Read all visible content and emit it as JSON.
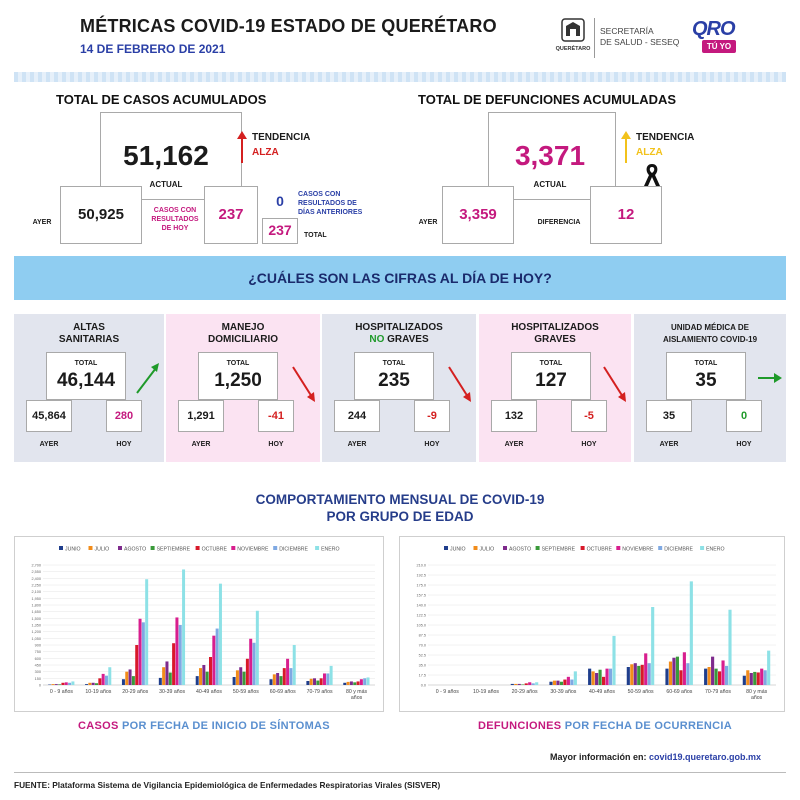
{
  "header": {
    "title": "MÉTRICAS COVID-19 ESTADO DE QUERÉTARO",
    "date": "14 DE FEBRERO DE 2021",
    "seal_label": "QUERÉTARO",
    "secretaria_line1": "SECRETARÍA",
    "secretaria_line2": "DE SALUD - SESEQ",
    "logo_text": "QRO",
    "logo_sub": "TÚ YO"
  },
  "casos": {
    "heading": "TOTAL DE CASOS ACUMULADOS",
    "actual": "51,162",
    "actual_label": "ACTUAL",
    "tendencia_label": "TENDENCIA",
    "tendencia_value": "ALZA",
    "ayer_label": "AYER",
    "ayer_value": "50,925",
    "hoy_label": "CASOS CON RESULTADOS DE HOY",
    "hoy_value": "237",
    "anteriores_value": "0",
    "anteriores_label": "CASOS CON RESULTADOS DE DÍAS ANTERIORES",
    "total_value": "237",
    "total_label": "TOTAL"
  },
  "defunciones": {
    "heading": "TOTAL DE DEFUNCIONES ACUMULADAS",
    "actual": "3,371",
    "actual_label": "ACTUAL",
    "tendencia_label": "TENDENCIA",
    "tendencia_value": "ALZA",
    "ayer_label": "AYER",
    "ayer_value": "3,359",
    "diferencia_label": "DIFERENCIA",
    "diferencia_value": "12"
  },
  "banner": "¿CUÁLES SON LAS CIFRAS AL DÍA DE HOY?",
  "cards": [
    {
      "title1": "ALTAS",
      "title2": "SANITARIAS",
      "total_label": "TOTAL",
      "total": "46,144",
      "ayer": "45,864",
      "hoy": "280",
      "ayer_label": "AYER",
      "hoy_label": "HOY",
      "trend": "up"
    },
    {
      "title1": "MANEJO",
      "title2": "DOMICILIARIO",
      "total_label": "TOTAL",
      "total": "1,250",
      "ayer": "1,291",
      "hoy": "-41",
      "ayer_label": "AYER",
      "hoy_label": "HOY",
      "trend": "down"
    },
    {
      "title1": "HOSPITALIZADOS",
      "title2a": "NO",
      "title2b": " GRAVES",
      "total_label": "TOTAL",
      "total": "235",
      "ayer": "244",
      "hoy": "-9",
      "ayer_label": "AYER",
      "hoy_label": "HOY",
      "trend": "down"
    },
    {
      "title1": "HOSPITALIZADOS",
      "title2": "GRAVES",
      "total_label": "TOTAL",
      "total": "127",
      "ayer": "132",
      "hoy": "-5",
      "ayer_label": "AYER",
      "hoy_label": "HOY",
      "trend": "down"
    },
    {
      "title1": "UNIDAD MÉDICA DE",
      "title2": "AISLAMIENTO COVID-19",
      "total_label": "TOTAL",
      "total": "35",
      "ayer": "35",
      "hoy": "0",
      "ayer_label": "AYER",
      "hoy_label": "HOY",
      "trend": "flat"
    }
  ],
  "colors": {
    "pink": "#c4197e",
    "blue": "#2a3fa6",
    "red_arrow": "#d42020",
    "green_arrow": "#1f9a2a",
    "yellow_arrow": "#f2c21b",
    "card_gray": "#e2e5ee",
    "card_pink": "#fbe3f2"
  },
  "comportamiento": {
    "line1": "COMPORTAMIENTO MENSUAL DE COVID-19",
    "line2": "POR GRUPO DE EDAD"
  },
  "chart_data": [
    {
      "type": "bar",
      "categories": [
        "0 - 9 años",
        "10-19 años",
        "20-29 años",
        "30-39 años",
        "40-49 años",
        "50-59 años",
        "60-69 años",
        "70-79 años",
        "80 y más años"
      ],
      "series": [
        {
          "name": "JUNIO",
          "color": "#1f3e8c",
          "values": [
            10,
            20,
            130,
            160,
            200,
            180,
            130,
            90,
            50
          ]
        },
        {
          "name": "JULIO",
          "color": "#f28c1a",
          "values": [
            20,
            50,
            300,
            400,
            380,
            330,
            240,
            140,
            70
          ]
        },
        {
          "name": "AGOSTO",
          "color": "#7e2a8c",
          "values": [
            20,
            50,
            350,
            530,
            450,
            400,
            270,
            150,
            80
          ]
        },
        {
          "name": "SEPTIEMBRE",
          "color": "#3a9a3a",
          "values": [
            15,
            40,
            200,
            280,
            300,
            300,
            200,
            100,
            60
          ]
        },
        {
          "name": "OCTUBRE",
          "color": "#d8192a",
          "values": [
            50,
            150,
            900,
            940,
            630,
            590,
            380,
            150,
            80
          ]
        },
        {
          "name": "NOVIEMBRE",
          "color": "#d81e8e",
          "values": [
            60,
            250,
            1490,
            1520,
            1110,
            1040,
            590,
            260,
            130
          ]
        },
        {
          "name": "DICIEMBRE",
          "color": "#7fa9e3",
          "values": [
            50,
            210,
            1410,
            1350,
            1270,
            950,
            380,
            260,
            150
          ]
        },
        {
          "name": "ENERO",
          "color": "#8de1e6",
          "values": [
            80,
            400,
            2380,
            2600,
            2280,
            1670,
            900,
            430,
            170
          ]
        }
      ],
      "ylim": [
        0,
        2700
      ],
      "yticks": [
        "0",
        "150",
        "300",
        "450",
        "600",
        "750",
        "900",
        "1,050",
        "1,200",
        "1,350",
        "1,500",
        "1,650",
        "1,800",
        "1,950",
        "2,100",
        "2,250",
        "2,400",
        "2,550",
        "2,700"
      ],
      "caption_a": "CASOS",
      "caption_b": " POR FECHA DE INICIO DE SÍNTOMAS"
    },
    {
      "type": "bar",
      "categories": [
        "0 - 9 años",
        "10-19 años",
        "20-29 años",
        "30-39 años",
        "40-49 años",
        "50-59 años",
        "60-69 años",
        "70-79 años",
        "80 y más años"
      ],
      "series": [
        {
          "name": "JUNIO",
          "color": "#1f3e8c",
          "values": [
            0,
            0,
            2,
            6,
            30,
            33,
            30,
            30,
            17
          ]
        },
        {
          "name": "JULIO",
          "color": "#f28c1a",
          "values": [
            0,
            0,
            2,
            8,
            25,
            38,
            43,
            33,
            27
          ]
        },
        {
          "name": "AGOSTO",
          "color": "#7e2a8c",
          "values": [
            0,
            0,
            2,
            8,
            22,
            40,
            50,
            52,
            22
          ]
        },
        {
          "name": "SEPTIEMBRE",
          "color": "#3a9a3a",
          "values": [
            0,
            0,
            1,
            6,
            28,
            35,
            52,
            30,
            24
          ]
        },
        {
          "name": "OCTUBRE",
          "color": "#d8192a",
          "values": [
            0,
            0,
            3,
            10,
            15,
            37,
            27,
            25,
            23
          ]
        },
        {
          "name": "NOVIEMBRE",
          "color": "#d81e8e",
          "values": [
            0,
            0,
            5,
            15,
            30,
            58,
            60,
            45,
            30
          ]
        },
        {
          "name": "DICIEMBRE",
          "color": "#7fa9e3",
          "values": [
            0,
            0,
            3,
            10,
            30,
            40,
            40,
            35,
            27
          ]
        },
        {
          "name": "ENERO",
          "color": "#8de1e6",
          "values": [
            0,
            0,
            5,
            25,
            90,
            143,
            190,
            138,
            63
          ]
        }
      ],
      "ylim": [
        0,
        220
      ],
      "yticks": [
        "0.0",
        "17.5",
        "35.0",
        "52.5",
        "70.0",
        "87.5",
        "105.0",
        "122.5",
        "140.0",
        "157.5",
        "175.0",
        "192.5",
        "210.0"
      ],
      "caption_a": "DEFUNCIONES",
      "caption_b": " POR FECHA DE OCURRENCIA"
    }
  ],
  "footer": {
    "info_label": "Mayor información en: ",
    "info_url": "covid19.queretaro.gob.mx",
    "fuente": "FUENTE: Plataforma Sistema  de Vigilancia Epidemiológica de Enfermedades Respiratorias Virales (SISVER)"
  }
}
